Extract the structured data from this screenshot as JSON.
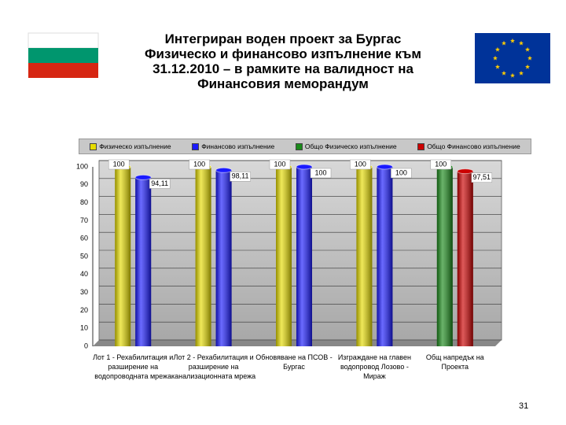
{
  "chart_data": {
    "type": "bar",
    "title": [
      "Интегриран воден проект за Бургас",
      "Физическо и финансово изпълнение към",
      "31.12.2010 – в рамките на валидност на",
      "Финансовия меморандум"
    ],
    "categories": [
      "Лот 1 - Рехабилитация и разширение на водопроводната мрежа",
      "Лот 2 - Рехабилитация и разширение на канализационната мрежа",
      "Обновяване на ПСОВ - Бургас",
      "Изграждане на главен водопровод Лозово - Мираж",
      "Общ напредък на Проекта"
    ],
    "series": [
      {
        "name": "Физическо изпълнение",
        "color": "#e6dc00",
        "values": [
          100,
          100,
          100,
          100,
          null
        ]
      },
      {
        "name": "Финансово изпълнение",
        "color": "#1a1aff",
        "values": [
          94.11,
          98.11,
          100,
          100,
          null
        ],
        "value_labels": [
          "94,11",
          "98,11",
          "100",
          "100",
          null
        ]
      },
      {
        "name": "Общо Физическо изпълнение",
        "color": "#1a8a1a",
        "values": [
          null,
          null,
          null,
          null,
          100
        ]
      },
      {
        "name": "Общо Финансово изпълнение",
        "color": "#cc0000",
        "values": [
          null,
          null,
          null,
          null,
          97.51
        ],
        "value_labels": [
          null,
          null,
          null,
          null,
          "97,51"
        ]
      }
    ],
    "ylim": [
      0,
      100
    ],
    "yticks": [
      0,
      10,
      20,
      30,
      40,
      50,
      60,
      70,
      80,
      90,
      100
    ],
    "grid": true
  },
  "slide": {
    "page_number": "31"
  }
}
